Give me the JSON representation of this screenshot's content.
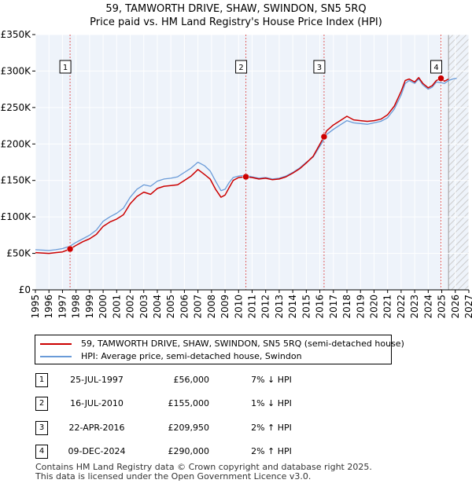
{
  "chart_data": {
    "type": "line",
    "title": "59, TAMWORTH DRIVE, SHAW, SWINDON, SN5 5RQ",
    "subtitle": "Price paid vs. HM Land Registry's House Price Index (HPI)",
    "xlim": [
      1995,
      2027
    ],
    "ylim": [
      0,
      350000
    ],
    "x_ticks": [
      1995,
      1996,
      1997,
      1998,
      1999,
      2000,
      2001,
      2002,
      2003,
      2004,
      2005,
      2006,
      2007,
      2008,
      2009,
      2010,
      2011,
      2012,
      2013,
      2014,
      2015,
      2016,
      2017,
      2018,
      2019,
      2020,
      2021,
      2022,
      2023,
      2024,
      2025,
      2026,
      2027
    ],
    "y_ticks": [
      0,
      50000,
      100000,
      150000,
      200000,
      250000,
      300000,
      350000
    ],
    "y_tick_labels": [
      "£0",
      "£50K",
      "£100K",
      "£150K",
      "£200K",
      "£250K",
      "£300K",
      "£350K"
    ],
    "grid": true,
    "forecast_from": 2025.5,
    "series": [
      {
        "name": "59, TAMWORTH DRIVE, SHAW, SWINDON, SN5 5RQ (semi-detached house)",
        "color": "#cc0000",
        "x": [
          1995,
          1995.5,
          1996,
          1996.5,
          1997,
          1997.56,
          1998,
          1998.5,
          1999,
          1999.5,
          2000,
          2000.5,
          2001,
          2001.5,
          2002,
          2002.5,
          2003,
          2003.5,
          2004,
          2004.5,
          2005,
          2005.5,
          2006,
          2006.5,
          2007,
          2007.5,
          2007.9,
          2008.3,
          2008.7,
          2009,
          2009.3,
          2009.6,
          2010,
          2010.54,
          2011,
          2011.5,
          2012,
          2012.5,
          2013,
          2013.5,
          2014,
          2014.5,
          2015,
          2015.5,
          2016.31,
          2016.5,
          2017,
          2017.5,
          2018,
          2018.5,
          2019,
          2019.5,
          2020,
          2020.5,
          2021,
          2021.5,
          2022,
          2022.3,
          2022.6,
          2023,
          2023.3,
          2023.6,
          2024,
          2024.3,
          2024.6,
          2024.94,
          2025.2,
          2025.5
        ],
        "y": [
          51000,
          50500,
          50000,
          51000,
          52000,
          56000,
          61000,
          66000,
          70000,
          76000,
          87000,
          93000,
          97000,
          103000,
          118000,
          128000,
          134000,
          131000,
          139000,
          142000,
          143000,
          144000,
          150000,
          156000,
          165000,
          158000,
          152000,
          138000,
          127000,
          130000,
          140000,
          150000,
          154000,
          155000,
          154000,
          152000,
          153000,
          151000,
          152000,
          155000,
          160000,
          166000,
          174000,
          183000,
          209950,
          218000,
          226000,
          232000,
          238000,
          233000,
          232000,
          231000,
          232000,
          234000,
          240000,
          252000,
          272000,
          287000,
          289000,
          285000,
          291000,
          283000,
          277000,
          280000,
          287000,
          290000,
          286000,
          289000
        ]
      },
      {
        "name": "HPI: Average price, semi-detached house, Swindon",
        "color": "#6a9bd8",
        "x": [
          1995,
          1995.5,
          1996,
          1996.5,
          1997,
          1997.56,
          1998,
          1998.5,
          1999,
          1999.5,
          2000,
          2000.5,
          2001,
          2001.5,
          2002,
          2002.5,
          2003,
          2003.5,
          2004,
          2004.5,
          2005,
          2005.5,
          2006,
          2006.5,
          2007,
          2007.5,
          2007.9,
          2008.3,
          2008.7,
          2009,
          2009.3,
          2009.6,
          2010,
          2010.54,
          2011,
          2011.5,
          2012,
          2012.5,
          2013,
          2013.5,
          2014,
          2014.5,
          2015,
          2015.5,
          2016.31,
          2016.5,
          2017,
          2017.5,
          2018,
          2018.5,
          2019,
          2019.5,
          2020,
          2020.5,
          2021,
          2021.5,
          2022,
          2022.3,
          2022.6,
          2023,
          2023.3,
          2023.6,
          2024,
          2024.3,
          2024.6,
          2024.94,
          2025.2,
          2025.5,
          2025.8,
          2026.1
        ],
        "y": [
          55000,
          54500,
          54000,
          55000,
          56500,
          60000,
          65000,
          70000,
          75000,
          82000,
          94000,
          100000,
          105000,
          112000,
          127000,
          138000,
          144000,
          142000,
          149000,
          152000,
          153000,
          155000,
          161000,
          167000,
          175000,
          170000,
          163000,
          149000,
          136000,
          138000,
          147000,
          154000,
          156000,
          157000,
          155000,
          153000,
          154000,
          152000,
          153000,
          156000,
          161000,
          167000,
          175000,
          182000,
          206000,
          213000,
          220000,
          226000,
          232000,
          229000,
          228000,
          227000,
          229000,
          231000,
          236000,
          248000,
          267000,
          283000,
          287000,
          283000,
          289000,
          281000,
          275000,
          278000,
          285000,
          284000,
          283000,
          287000,
          289000,
          290000
        ]
      }
    ],
    "annotations": [
      {
        "label": "1",
        "x": 1997.56,
        "y": 56000
      },
      {
        "label": "2",
        "x": 2010.54,
        "y": 155000
      },
      {
        "label": "3",
        "x": 2016.31,
        "y": 209950
      },
      {
        "label": "4",
        "x": 2024.94,
        "y": 290000
      }
    ]
  },
  "legend": {
    "items": [
      {
        "label": "59, TAMWORTH DRIVE, SHAW, SWINDON, SN5 5RQ (semi-detached house)",
        "color": "#cc0000"
      },
      {
        "label": "HPI: Average price, semi-detached house, Swindon",
        "color": "#6a9bd8"
      }
    ]
  },
  "transactions": [
    {
      "num": "1",
      "date": "25-JUL-1997",
      "price": "£56,000",
      "hpi": "7% ↓ HPI"
    },
    {
      "num": "2",
      "date": "16-JUL-2010",
      "price": "£155,000",
      "hpi": "1% ↓ HPI"
    },
    {
      "num": "3",
      "date": "22-APR-2016",
      "price": "£209,950",
      "hpi": "2% ↑ HPI"
    },
    {
      "num": "4",
      "date": "09-DEC-2024",
      "price": "£290,000",
      "hpi": "2% ↑ HPI"
    }
  ],
  "footer": {
    "line1": "Contains HM Land Registry data © Crown copyright and database right 2025.",
    "line2": "This data is licensed under the Open Government Licence v3.0."
  }
}
